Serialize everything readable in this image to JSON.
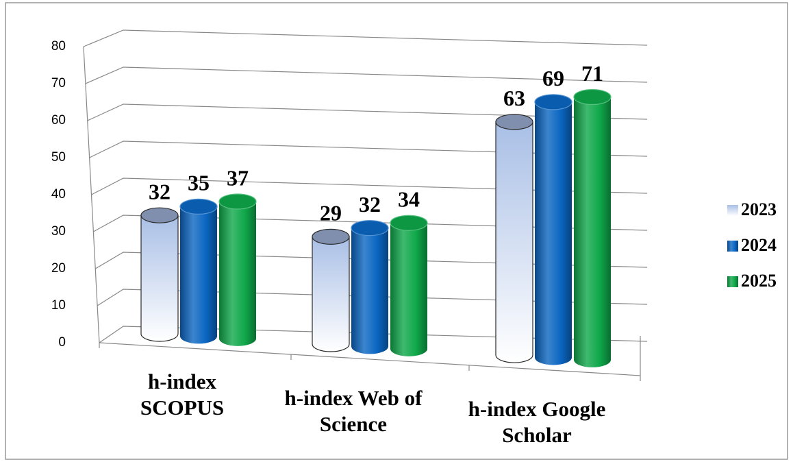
{
  "chart_data": {
    "type": "bar3d",
    "categories": [
      "h-index SCOPUS",
      "h-index Web of Science",
      "h-index Google Scholar"
    ],
    "series": [
      {
        "name": "2023",
        "color": "#a9bfe6",
        "values": [
          32,
          29,
          63
        ]
      },
      {
        "name": "2024",
        "color": "#0b66c2",
        "values": [
          35,
          32,
          69
        ]
      },
      {
        "name": "2025",
        "color": "#0fa84a",
        "values": [
          37,
          34,
          71
        ]
      }
    ],
    "ylim": [
      0,
      80
    ],
    "yticks": [
      0,
      10,
      20,
      30,
      40,
      50,
      60,
      70,
      80
    ],
    "grid": true,
    "legend": "right"
  }
}
